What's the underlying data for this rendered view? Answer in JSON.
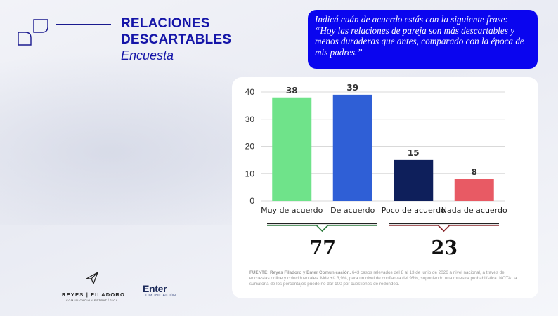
{
  "header": {
    "title_line1": "RELACIONES",
    "title_line2": "DESCARTABLES",
    "subtitle": "Encuesta",
    "question": "Indicá cuán de acuerdo estás con la siguiente frase: “Hoy las relaciones de pareja son más descartables y menos duraderas que antes, comparado con la época de mis padres.”"
  },
  "chart_data": {
    "type": "bar",
    "categories": [
      "Muy de acuerdo",
      "De acuerdo",
      "Poco de acuerdo",
      "Nada de acuerdo"
    ],
    "values": [
      38,
      39,
      15,
      8
    ],
    "colors": [
      "#6fe38a",
      "#2f5fd6",
      "#0e1f5b",
      "#e85a64"
    ],
    "ylim": [
      0,
      40
    ],
    "yticks": [
      0,
      10,
      20,
      30,
      40
    ],
    "grid": true,
    "groups": [
      {
        "categories": [
          "Muy de acuerdo",
          "De acuerdo"
        ],
        "total": "77",
        "color": "#2e7d3e"
      },
      {
        "categories": [
          "Poco de acuerdo",
          "Nada de acuerdo"
        ],
        "total": "23",
        "color": "#8a2a2e"
      }
    ]
  },
  "source": {
    "label": "FUENTE: Reyes Filadoro y Enter Comunicación.",
    "text": "643 casos relevados del 8 al 13 de junio de 2026 a nivel nacional, a través de encuestas online y coinciduentales. Mde +/- 3,9%, para un nivel de confianza del 95%, suponiendo una muestra probabilística. NOTA: la sumatoria de los porcentajes puede no dar 100 por cuestiones de redondeo."
  },
  "footer": {
    "reyes_name": "REYES | FILADORO",
    "reyes_sub": "COMUNICACIÓN ESTRATÉGICA",
    "enter_name": "Enter",
    "enter_sub": "COMUNICACIÓN"
  }
}
